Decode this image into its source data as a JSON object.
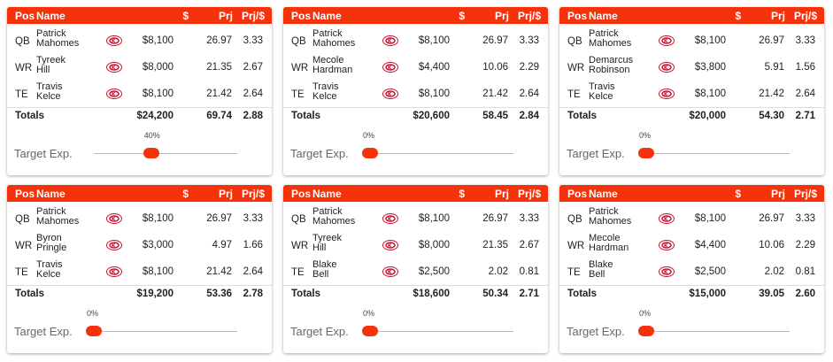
{
  "headers": {
    "pos": "Pos",
    "name": "Name",
    "salary": "$",
    "proj": "Prj",
    "pps": "Prj/$"
  },
  "totals_label": "Totals",
  "slider_label": "Target Exp.",
  "accent": "#f4330d",
  "lineups": [
    {
      "players": [
        {
          "pos": "QB",
          "first": "Patrick",
          "last": "Mahomes",
          "salary": "$8,100",
          "proj": "26.97",
          "pps": "3.33",
          "team_icon": "chiefs-logo-icon"
        },
        {
          "pos": "WR",
          "first": "Tyreek",
          "last": "Hill",
          "salary": "$8,000",
          "proj": "21.35",
          "pps": "2.67",
          "team_icon": "chiefs-logo-icon"
        },
        {
          "pos": "TE",
          "first": "Travis",
          "last": "Kelce",
          "salary": "$8,100",
          "proj": "21.42",
          "pps": "2.64",
          "team_icon": "chiefs-logo-icon"
        }
      ],
      "totals": {
        "salary": "$24,200",
        "proj": "69.74",
        "pps": "2.88"
      },
      "exposure_label": "40%",
      "exposure": 0.4
    },
    {
      "players": [
        {
          "pos": "QB",
          "first": "Patrick",
          "last": "Mahomes",
          "salary": "$8,100",
          "proj": "26.97",
          "pps": "3.33",
          "team_icon": "chiefs-logo-icon"
        },
        {
          "pos": "WR",
          "first": "Mecole",
          "last": "Hardman",
          "salary": "$4,400",
          "proj": "10.06",
          "pps": "2.29",
          "team_icon": "chiefs-logo-icon"
        },
        {
          "pos": "TE",
          "first": "Travis",
          "last": "Kelce",
          "salary": "$8,100",
          "proj": "21.42",
          "pps": "2.64",
          "team_icon": "chiefs-logo-icon"
        }
      ],
      "totals": {
        "salary": "$20,600",
        "proj": "58.45",
        "pps": "2.84"
      },
      "exposure_label": "0%",
      "exposure": 0
    },
    {
      "players": [
        {
          "pos": "QB",
          "first": "Patrick",
          "last": "Mahomes",
          "salary": "$8,100",
          "proj": "26.97",
          "pps": "3.33",
          "team_icon": "chiefs-logo-icon"
        },
        {
          "pos": "WR",
          "first": "Demarcus",
          "last": "Robinson",
          "salary": "$3,800",
          "proj": "5.91",
          "pps": "1.56",
          "team_icon": "chiefs-logo-icon"
        },
        {
          "pos": "TE",
          "first": "Travis",
          "last": "Kelce",
          "salary": "$8,100",
          "proj": "21.42",
          "pps": "2.64",
          "team_icon": "chiefs-logo-icon"
        }
      ],
      "totals": {
        "salary": "$20,000",
        "proj": "54.30",
        "pps": "2.71"
      },
      "exposure_label": "0%",
      "exposure": 0
    },
    {
      "players": [
        {
          "pos": "QB",
          "first": "Patrick",
          "last": "Mahomes",
          "salary": "$8,100",
          "proj": "26.97",
          "pps": "3.33",
          "team_icon": "chiefs-logo-icon"
        },
        {
          "pos": "WR",
          "first": "Byron",
          "last": "Pringle",
          "salary": "$3,000",
          "proj": "4.97",
          "pps": "1.66",
          "team_icon": "chiefs-logo-icon"
        },
        {
          "pos": "TE",
          "first": "Travis",
          "last": "Kelce",
          "salary": "$8,100",
          "proj": "21.42",
          "pps": "2.64",
          "team_icon": "chiefs-logo-icon"
        }
      ],
      "totals": {
        "salary": "$19,200",
        "proj": "53.36",
        "pps": "2.78"
      },
      "exposure_label": "0%",
      "exposure": 0
    },
    {
      "players": [
        {
          "pos": "QB",
          "first": "Patrick",
          "last": "Mahomes",
          "salary": "$8,100",
          "proj": "26.97",
          "pps": "3.33",
          "team_icon": "chiefs-logo-icon"
        },
        {
          "pos": "WR",
          "first": "Tyreek",
          "last": "Hill",
          "salary": "$8,000",
          "proj": "21.35",
          "pps": "2.67",
          "team_icon": "chiefs-logo-icon"
        },
        {
          "pos": "TE",
          "first": "Blake",
          "last": "Bell",
          "salary": "$2,500",
          "proj": "2.02",
          "pps": "0.81",
          "team_icon": "chiefs-logo-icon"
        }
      ],
      "totals": {
        "salary": "$18,600",
        "proj": "50.34",
        "pps": "2.71"
      },
      "exposure_label": "0%",
      "exposure": 0
    },
    {
      "players": [
        {
          "pos": "QB",
          "first": "Patrick",
          "last": "Mahomes",
          "salary": "$8,100",
          "proj": "26.97",
          "pps": "3.33",
          "team_icon": "chiefs-logo-icon"
        },
        {
          "pos": "WR",
          "first": "Mecole",
          "last": "Hardman",
          "salary": "$4,400",
          "proj": "10.06",
          "pps": "2.29",
          "team_icon": "chiefs-logo-icon"
        },
        {
          "pos": "TE",
          "first": "Blake",
          "last": "Bell",
          "salary": "$2,500",
          "proj": "2.02",
          "pps": "0.81",
          "team_icon": "chiefs-logo-icon"
        }
      ],
      "totals": {
        "salary": "$15,000",
        "proj": "39.05",
        "pps": "2.60"
      },
      "exposure_label": "0%",
      "exposure": 0
    }
  ]
}
